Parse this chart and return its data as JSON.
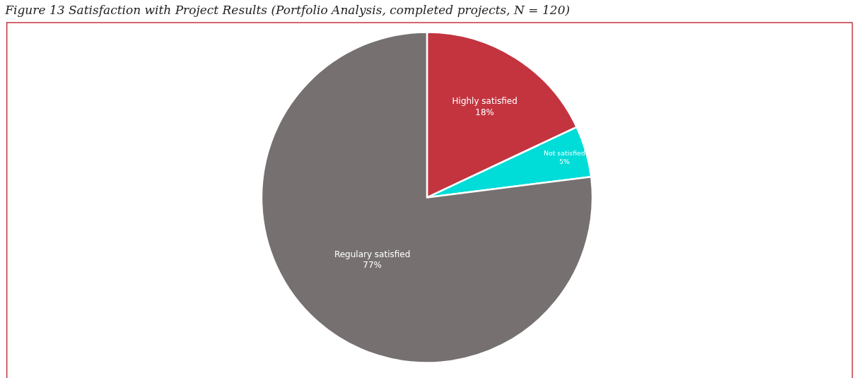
{
  "chart_data": {
    "type": "pie",
    "title": "Figure 13 Satisfaction with Project Results (Portfolio Analysis, completed projects, N = 120)",
    "categories": [
      "Highly satisfied",
      "Not satisfied",
      "Regulary satisfied"
    ],
    "values": [
      18,
      5,
      77
    ],
    "value_labels": [
      "18%",
      "5%",
      "77%"
    ],
    "colors": [
      "#c3343f",
      "#00dcd8",
      "#767170"
    ],
    "legend": false
  }
}
